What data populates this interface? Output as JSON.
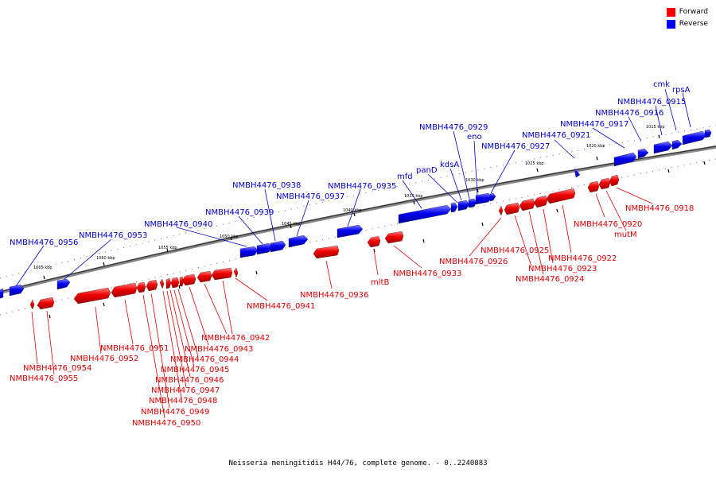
{
  "legend": {
    "forward": "Forward",
    "reverse": "Reverse",
    "forward_color": "#ff0000",
    "reverse_color": "#0000ff"
  },
  "footer": "Neisseria meningitidis H44/76, complete genome. - 0..2240883",
  "map": {
    "tick_labels": [
      "1015 kbp",
      "1020 kbp",
      "1025 kbp",
      "1030 kbp",
      "1035 kbp",
      "1040 kbp",
      "1045 kbp",
      "1050 kbp",
      "1055 kbp",
      "1060 kbp",
      "1065 kbp"
    ],
    "reverse_genes": [
      "NMBH4476_0956",
      "NMBH4476_0953",
      "NMBH4476_0940",
      "NMBH4476_0939",
      "NMBH4476_0938",
      "NMBH4476_0937",
      "NMBH4476_0935",
      "mfd",
      "panD",
      "kdsA",
      "NMBH4476_0929",
      "eno",
      "NMBH4476_0927",
      "NMBH4476_0921",
      "NMBH4476_0917",
      "NMBH4476_0916",
      "NMBH4476_0915",
      "cmk",
      "rpsA"
    ],
    "forward_genes": [
      "NMBH4476_0954",
      "NMBH4476_0955",
      "NMBH4476_0952",
      "NMBH4476_0951",
      "NMBH4476_0950",
      "NMBH4476_0949",
      "NMBH4476_0948",
      "NMBH4476_0947",
      "NMBH4476_0946",
      "NMBH4476_0945",
      "NMBH4476_0944",
      "NMBH4476_0943",
      "NMBH4476_0942",
      "NMBH4476_0941",
      "NMBH4476_0936",
      "mltB",
      "NMBH4476_0933",
      "NMBH4476_0926",
      "NMBH4476_0925",
      "NMBH4476_0924",
      "NMBH4476_0923",
      "NMBH4476_0922",
      "mutM",
      "NMBH4476_0920",
      "NMBH4476_0918"
    ]
  }
}
